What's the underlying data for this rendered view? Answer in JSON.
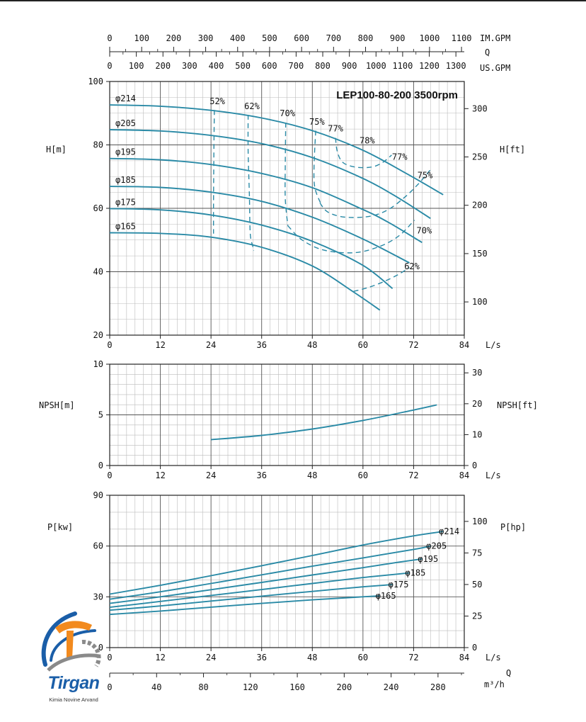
{
  "chart_data": [
    {
      "type": "line",
      "title": "LEP100-80-200 3500rpm",
      "xlabel": "L/s",
      "ylabel": "H[m]",
      "ylabel_right": "H[ft]",
      "xlim": [
        0,
        84
      ],
      "ylim": [
        20,
        100
      ],
      "x_ticks": [
        0,
        12,
        24,
        36,
        48,
        60,
        72,
        84
      ],
      "y_ticks": [
        20,
        40,
        60,
        80,
        100
      ],
      "y_right_ticks": [
        100,
        150,
        200,
        250,
        300
      ],
      "top_axes": [
        {
          "unit": "IM.GPM",
          "ticks": [
            0,
            100,
            200,
            300,
            400,
            500,
            600,
            700,
            800,
            900,
            1000,
            1100
          ],
          "ls_per_unit": 0.0757682
        },
        {
          "unit": "US.GPM",
          "ticks": [
            0,
            100,
            200,
            300,
            400,
            500,
            600,
            700,
            800,
            900,
            1000,
            1100,
            1200,
            1300
          ],
          "ls_per_unit": 0.0630902
        }
      ],
      "top_axis_q_label": "Q",
      "grid": true,
      "series": [
        {
          "name": "φ214",
          "x": [
            0,
            12,
            24,
            36,
            48,
            60,
            70,
            79
          ],
          "y": [
            92.6,
            92.2,
            90.9,
            88.5,
            84.5,
            78.3,
            71.2,
            64.3
          ]
        },
        {
          "name": "φ205",
          "x": [
            0,
            12,
            24,
            36,
            48,
            60,
            68,
            76
          ],
          "y": [
            84.8,
            84.4,
            83.0,
            80.4,
            76.0,
            69.4,
            63.6,
            56.8
          ]
        },
        {
          "name": "φ195",
          "x": [
            0,
            12,
            24,
            36,
            48,
            60,
            66,
            74
          ],
          "y": [
            75.7,
            75.3,
            73.8,
            71.0,
            66.5,
            59.6,
            55.6,
            49.2
          ]
        },
        {
          "name": "φ185",
          "x": [
            0,
            12,
            24,
            36,
            48,
            60,
            71
          ],
          "y": [
            66.9,
            66.6,
            65.1,
            62.2,
            57.2,
            50.3,
            42.8
          ]
        },
        {
          "name": "φ175",
          "x": [
            0,
            12,
            24,
            36,
            48,
            60,
            67
          ],
          "y": [
            59.9,
            59.5,
            57.9,
            54.7,
            49.6,
            42.0,
            34.7
          ]
        },
        {
          "name": "φ165",
          "x": [
            0,
            12,
            24,
            36,
            48,
            58,
            64
          ],
          "y": [
            52.3,
            52.1,
            50.9,
            47.7,
            41.8,
            33.4,
            27.9
          ]
        }
      ],
      "efficiency_curves": [
        {
          "name": "52%",
          "x": [
            24.8,
            24.7,
            24.6,
            24.6
          ],
          "y": [
            91,
            80,
            62,
            52
          ]
        },
        {
          "name": "62%",
          "x": [
            32.8,
            32.8,
            33.1,
            33.3,
            33.9,
            34.1
          ],
          "y": [
            89.5,
            78,
            64,
            52,
            48,
            46.6
          ]
        },
        {
          "name": "70%",
          "x": [
            41.7,
            41.6,
            41.6,
            42.2
          ],
          "y": [
            87,
            74,
            63,
            54.5
          ]
        },
        {
          "name": "75%",
          "x": [
            48.8,
            48.4,
            48.6,
            50.0
          ],
          "y": [
            84.5,
            73,
            66.5,
            61.5
          ]
        },
        {
          "name": "77%",
          "x": [
            53.5,
            53.9,
            55.2,
            58.2,
            62.0,
            64.6,
            66.8
          ],
          "y": [
            82.2,
            78,
            74.5,
            73,
            73,
            74.4,
            76.8
          ]
        },
        {
          "name": "75%",
          "x": [
            49.8,
            51.7,
            55.8,
            61.7,
            66.0,
            69.8,
            73.0,
            76.0
          ],
          "y": [
            61.7,
            58.8,
            57.2,
            57.5,
            59.6,
            63.4,
            67.5,
            72.2
          ]
        },
        {
          "name": "70%",
          "x": [
            42.2,
            45.6,
            50.8,
            58.0,
            64.0,
            68.6,
            72.2
          ],
          "y": [
            54.5,
            50.0,
            46.8,
            46.0,
            48.0,
            51.4,
            56.3
          ]
        },
        {
          "name": "62%",
          "x": [
            57.8,
            61.2,
            64.8,
            68.2,
            71.0
          ],
          "y": [
            33.8,
            35.0,
            36.8,
            39.0,
            41.3
          ]
        }
      ],
      "efficiency_labels": [
        {
          "text": "52%",
          "x": 25.5,
          "y": 92.9
        },
        {
          "text": "62%",
          "x": 33.7,
          "y": 91.3
        },
        {
          "text": "70%",
          "x": 42.1,
          "y": 89.0
        },
        {
          "text": "75%",
          "x": 49.1,
          "y": 86.4
        },
        {
          "text": "77%",
          "x": 53.5,
          "y": 84.2
        },
        {
          "text": "78%",
          "x": 61.0,
          "y": 80.5
        },
        {
          "text": "77%",
          "x": 68.7,
          "y": 75.3
        },
        {
          "text": "75%",
          "x": 74.7,
          "y": 69.5
        },
        {
          "text": "70%",
          "x": 74.5,
          "y": 52.1
        },
        {
          "text": "62%",
          "x": 71.6,
          "y": 40.8
        }
      ]
    },
    {
      "type": "line",
      "xlabel": "L/s",
      "ylabel": "NPSH[m]",
      "ylabel_right": "NPSH[ft]",
      "xlim": [
        0,
        84
      ],
      "ylim": [
        0,
        10
      ],
      "x_ticks": [
        0,
        12,
        24,
        36,
        48,
        60,
        72,
        84
      ],
      "y_ticks": [
        0,
        5,
        10
      ],
      "y_right_ticks": [
        0,
        10,
        20,
        30
      ],
      "grid": true,
      "series": [
        {
          "x": [
            24,
            36,
            48,
            60,
            70,
            77.5
          ],
          "y": [
            2.55,
            2.97,
            3.6,
            4.45,
            5.3,
            5.98
          ]
        }
      ]
    },
    {
      "type": "line",
      "xlabel": "L/s",
      "ylabel": "P[kw]",
      "ylabel_right": "P[hp]",
      "xlim": [
        0,
        84
      ],
      "ylim": [
        0,
        90
      ],
      "x_ticks": [
        0,
        12,
        24,
        36,
        48,
        60,
        72,
        84
      ],
      "y_ticks": [
        0,
        30,
        60,
        90
      ],
      "y_right_ticks": [
        0,
        25,
        50,
        75,
        100
      ],
      "bottom_axis": {
        "unit": "m³/h",
        "ticks": [
          0,
          40,
          80,
          120,
          160,
          200,
          240,
          280
        ],
        "ls_per_unit": 0.277778
      },
      "bottom_axis_q_label": "Q",
      "grid": true,
      "series": [
        {
          "name": "φ214",
          "x": [
            0,
            12,
            24,
            36,
            48,
            60,
            72,
            79
          ],
          "y": [
            31.6,
            36.8,
            42.5,
            48.4,
            54.4,
            60.6,
            66.0,
            68.6
          ]
        },
        {
          "name": "φ205",
          "x": [
            0,
            12,
            24,
            36,
            48,
            60,
            72,
            76
          ],
          "y": [
            28.6,
            33.0,
            37.9,
            43.0,
            48.1,
            53.0,
            58.0,
            60.0
          ]
        },
        {
          "name": "φ195",
          "x": [
            0,
            12,
            24,
            36,
            48,
            60,
            68,
            74
          ],
          "y": [
            26.1,
            30.0,
            34.2,
            38.5,
            42.9,
            47.2,
            50.3,
            52.4
          ]
        },
        {
          "name": "φ185",
          "x": [
            0,
            12,
            24,
            36,
            48,
            60,
            71
          ],
          "y": [
            23.8,
            27.3,
            30.8,
            34.3,
            37.9,
            41.4,
            44.1
          ]
        },
        {
          "name": "φ175",
          "x": [
            0,
            12,
            24,
            36,
            48,
            60,
            67
          ],
          "y": [
            22.1,
            24.6,
            27.5,
            30.4,
            33.2,
            35.9,
            37.2
          ]
        },
        {
          "name": "φ165",
          "x": [
            0,
            12,
            24,
            36,
            48,
            58,
            64
          ],
          "y": [
            19.6,
            21.6,
            23.9,
            26.1,
            28.2,
            29.7,
            30.6
          ]
        }
      ]
    }
  ],
  "logo": {
    "word": "Tirgan",
    "subtitle": "Kimia Novine Arvand"
  },
  "colors": {
    "curve": "#2a8aa6",
    "grid_major": "#555555",
    "grid_minor": "#bbbbbb",
    "logo_blue": "#1a5ea8",
    "logo_orange": "#f28a1e",
    "logo_gray": "#8a8a8a"
  }
}
